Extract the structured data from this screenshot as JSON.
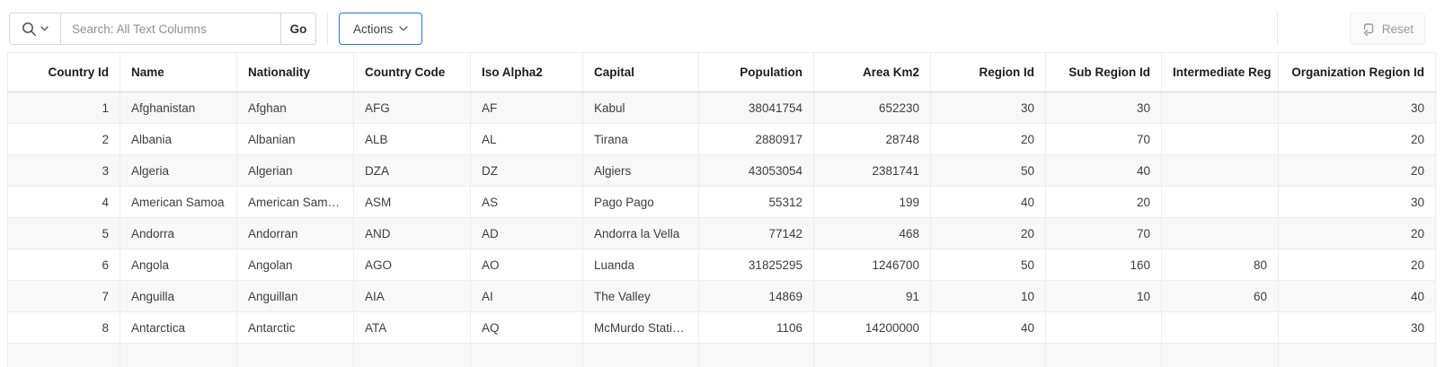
{
  "colors": {
    "accent": "#2d6fdb",
    "row_stripe": "#f8f8f8",
    "grid_border": "#ededed"
  },
  "toolbar": {
    "search": {
      "icon": "magnifier-with-dropdown",
      "placeholder": "Search: All Text Columns",
      "value": "",
      "go_label": "Go"
    },
    "actions_label": "Actions",
    "reset_label": "Reset"
  },
  "table": {
    "columns": [
      "Country Id",
      "Name",
      "Nationality",
      "Country Code",
      "Iso Alpha2",
      "Capital",
      "Population",
      "Area Km2",
      "Region Id",
      "Sub Region Id",
      "Intermediate Reg",
      "Organization Region Id"
    ],
    "rows": [
      [
        "1",
        "Afghanistan",
        "Afghan",
        "AFG",
        "AF",
        "Kabul",
        "38041754",
        "652230",
        "30",
        "30",
        "",
        "30"
      ],
      [
        "2",
        "Albania",
        "Albanian",
        "ALB",
        "AL",
        "Tirana",
        "2880917",
        "28748",
        "20",
        "70",
        "",
        "20"
      ],
      [
        "3",
        "Algeria",
        "Algerian",
        "DZA",
        "DZ",
        "Algiers",
        "43053054",
        "2381741",
        "50",
        "40",
        "",
        "20"
      ],
      [
        "4",
        "American Samoa",
        "American Sam…",
        "ASM",
        "AS",
        "Pago Pago",
        "55312",
        "199",
        "40",
        "20",
        "",
        "30"
      ],
      [
        "5",
        "Andorra",
        "Andorran",
        "AND",
        "AD",
        "Andorra la Vella",
        "77142",
        "468",
        "20",
        "70",
        "",
        "20"
      ],
      [
        "6",
        "Angola",
        "Angolan",
        "AGO",
        "AO",
        "Luanda",
        "31825295",
        "1246700",
        "50",
        "160",
        "80",
        "20"
      ],
      [
        "7",
        "Anguilla",
        "Anguillan",
        "AIA",
        "AI",
        "The Valley",
        "14869",
        "91",
        "10",
        "10",
        "60",
        "40"
      ],
      [
        "8",
        "Antarctica",
        "Antarctic",
        "ATA",
        "AQ",
        "McMurdo Stati…",
        "1106",
        "14200000",
        "40",
        "",
        "",
        "30"
      ]
    ]
  }
}
